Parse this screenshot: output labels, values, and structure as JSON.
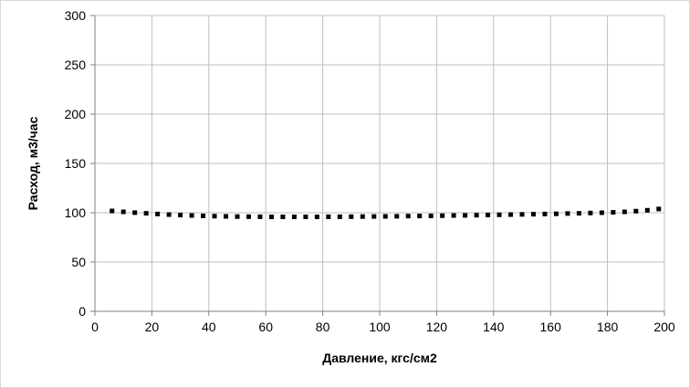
{
  "chart_data": {
    "type": "scatter",
    "title": "",
    "xlabel": "Давление, кгс/см2",
    "ylabel": "Расход, м3/час",
    "xlim": [
      0,
      200
    ],
    "ylim": [
      0,
      300
    ],
    "x_ticks": [
      "0",
      "20",
      "40",
      "60",
      "80",
      "100",
      "120",
      "140",
      "160",
      "180",
      "200"
    ],
    "y_ticks": [
      "0",
      "50",
      "100",
      "150",
      "200",
      "250",
      "300"
    ],
    "grid": true,
    "legend": "none",
    "marker_color": "#000000",
    "series": [
      {
        "x": [
          6,
          10,
          14,
          18,
          22,
          26,
          30,
          34,
          38,
          42,
          46,
          50,
          54,
          58,
          62,
          66,
          70,
          74,
          78,
          82,
          86,
          90,
          94,
          98,
          102,
          106,
          110,
          114,
          118,
          122,
          126,
          130,
          134,
          138,
          142,
          146,
          150,
          154,
          158,
          162,
          166,
          170,
          174,
          178,
          182,
          186,
          190,
          194,
          198
        ],
        "y": [
          101.8,
          100.9,
          100.1,
          99.4,
          98.7,
          98.1,
          97.6,
          97.2,
          96.8,
          96.5,
          96.3,
          96.1,
          96.0,
          95.9,
          95.8,
          95.8,
          95.8,
          95.8,
          95.8,
          95.9,
          95.9,
          96.0,
          96.1,
          96.2,
          96.3,
          96.4,
          96.6,
          96.7,
          96.8,
          97.0,
          97.2,
          97.3,
          97.5,
          97.7,
          97.9,
          98.1,
          98.3,
          98.5,
          98.7,
          98.9,
          99.2,
          99.4,
          99.7,
          100.0,
          100.4,
          100.9,
          101.6,
          102.5,
          103.8
        ]
      }
    ]
  }
}
